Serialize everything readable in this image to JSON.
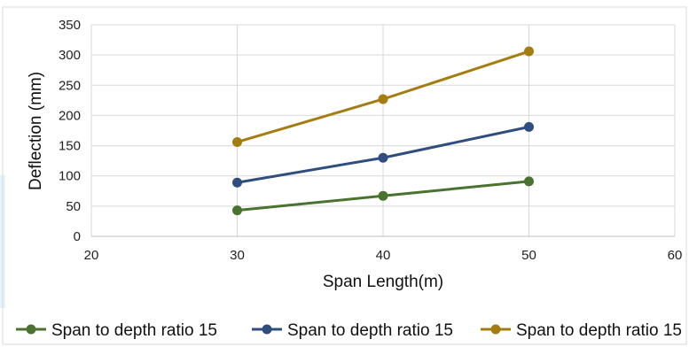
{
  "chart_data": {
    "type": "line",
    "xlabel": "Span Length(m)",
    "ylabel": "Deflection (mm)",
    "xlim": [
      20,
      60
    ],
    "ylim": [
      0,
      350
    ],
    "x_ticks": [
      20,
      30,
      40,
      50,
      60
    ],
    "y_ticks": [
      0,
      50,
      100,
      150,
      200,
      250,
      300,
      350
    ],
    "grid": "vertical and horizontal",
    "legend_position": "bottom",
    "series": [
      {
        "name": "Span to depth ratio 15",
        "color": "#4a7230",
        "x": [
          30,
          40,
          50
        ],
        "y": [
          43,
          67,
          91
        ]
      },
      {
        "name": "Span to depth ratio 15",
        "color": "#2f4d7e",
        "x": [
          30,
          40,
          50
        ],
        "y": [
          89,
          130,
          181
        ]
      },
      {
        "name": "Span to depth ratio 15",
        "color": "#a57c10",
        "x": [
          30,
          40,
          50
        ],
        "y": [
          156,
          227,
          306
        ]
      }
    ]
  }
}
